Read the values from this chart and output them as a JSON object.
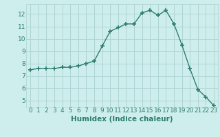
{
  "x": [
    0,
    1,
    2,
    3,
    4,
    5,
    6,
    7,
    8,
    9,
    10,
    11,
    12,
    13,
    14,
    15,
    16,
    17,
    18,
    19,
    20,
    21,
    22,
    23
  ],
  "y": [
    7.5,
    7.6,
    7.6,
    7.6,
    7.7,
    7.7,
    7.8,
    8.0,
    8.2,
    9.4,
    10.6,
    10.9,
    11.2,
    11.2,
    12.1,
    12.3,
    11.9,
    12.3,
    11.2,
    9.5,
    7.6,
    5.9,
    5.3,
    4.6
  ],
  "line_color": "#2e7d6e",
  "marker": "+",
  "marker_size": 4,
  "marker_lw": 1.2,
  "line_width": 1.0,
  "xlabel": "Humidex (Indice chaleur)",
  "xlim": [
    -0.5,
    23.5
  ],
  "ylim": [
    4.5,
    12.8
  ],
  "yticks": [
    5,
    6,
    7,
    8,
    9,
    10,
    11,
    12
  ],
  "xticks": [
    0,
    1,
    2,
    3,
    4,
    5,
    6,
    7,
    8,
    9,
    10,
    11,
    12,
    13,
    14,
    15,
    16,
    17,
    18,
    19,
    20,
    21,
    22,
    23
  ],
  "bg_color": "#ceeeed",
  "grid_color": "#aed4d3",
  "tick_fontsize": 6.5,
  "label_fontsize": 7.5
}
